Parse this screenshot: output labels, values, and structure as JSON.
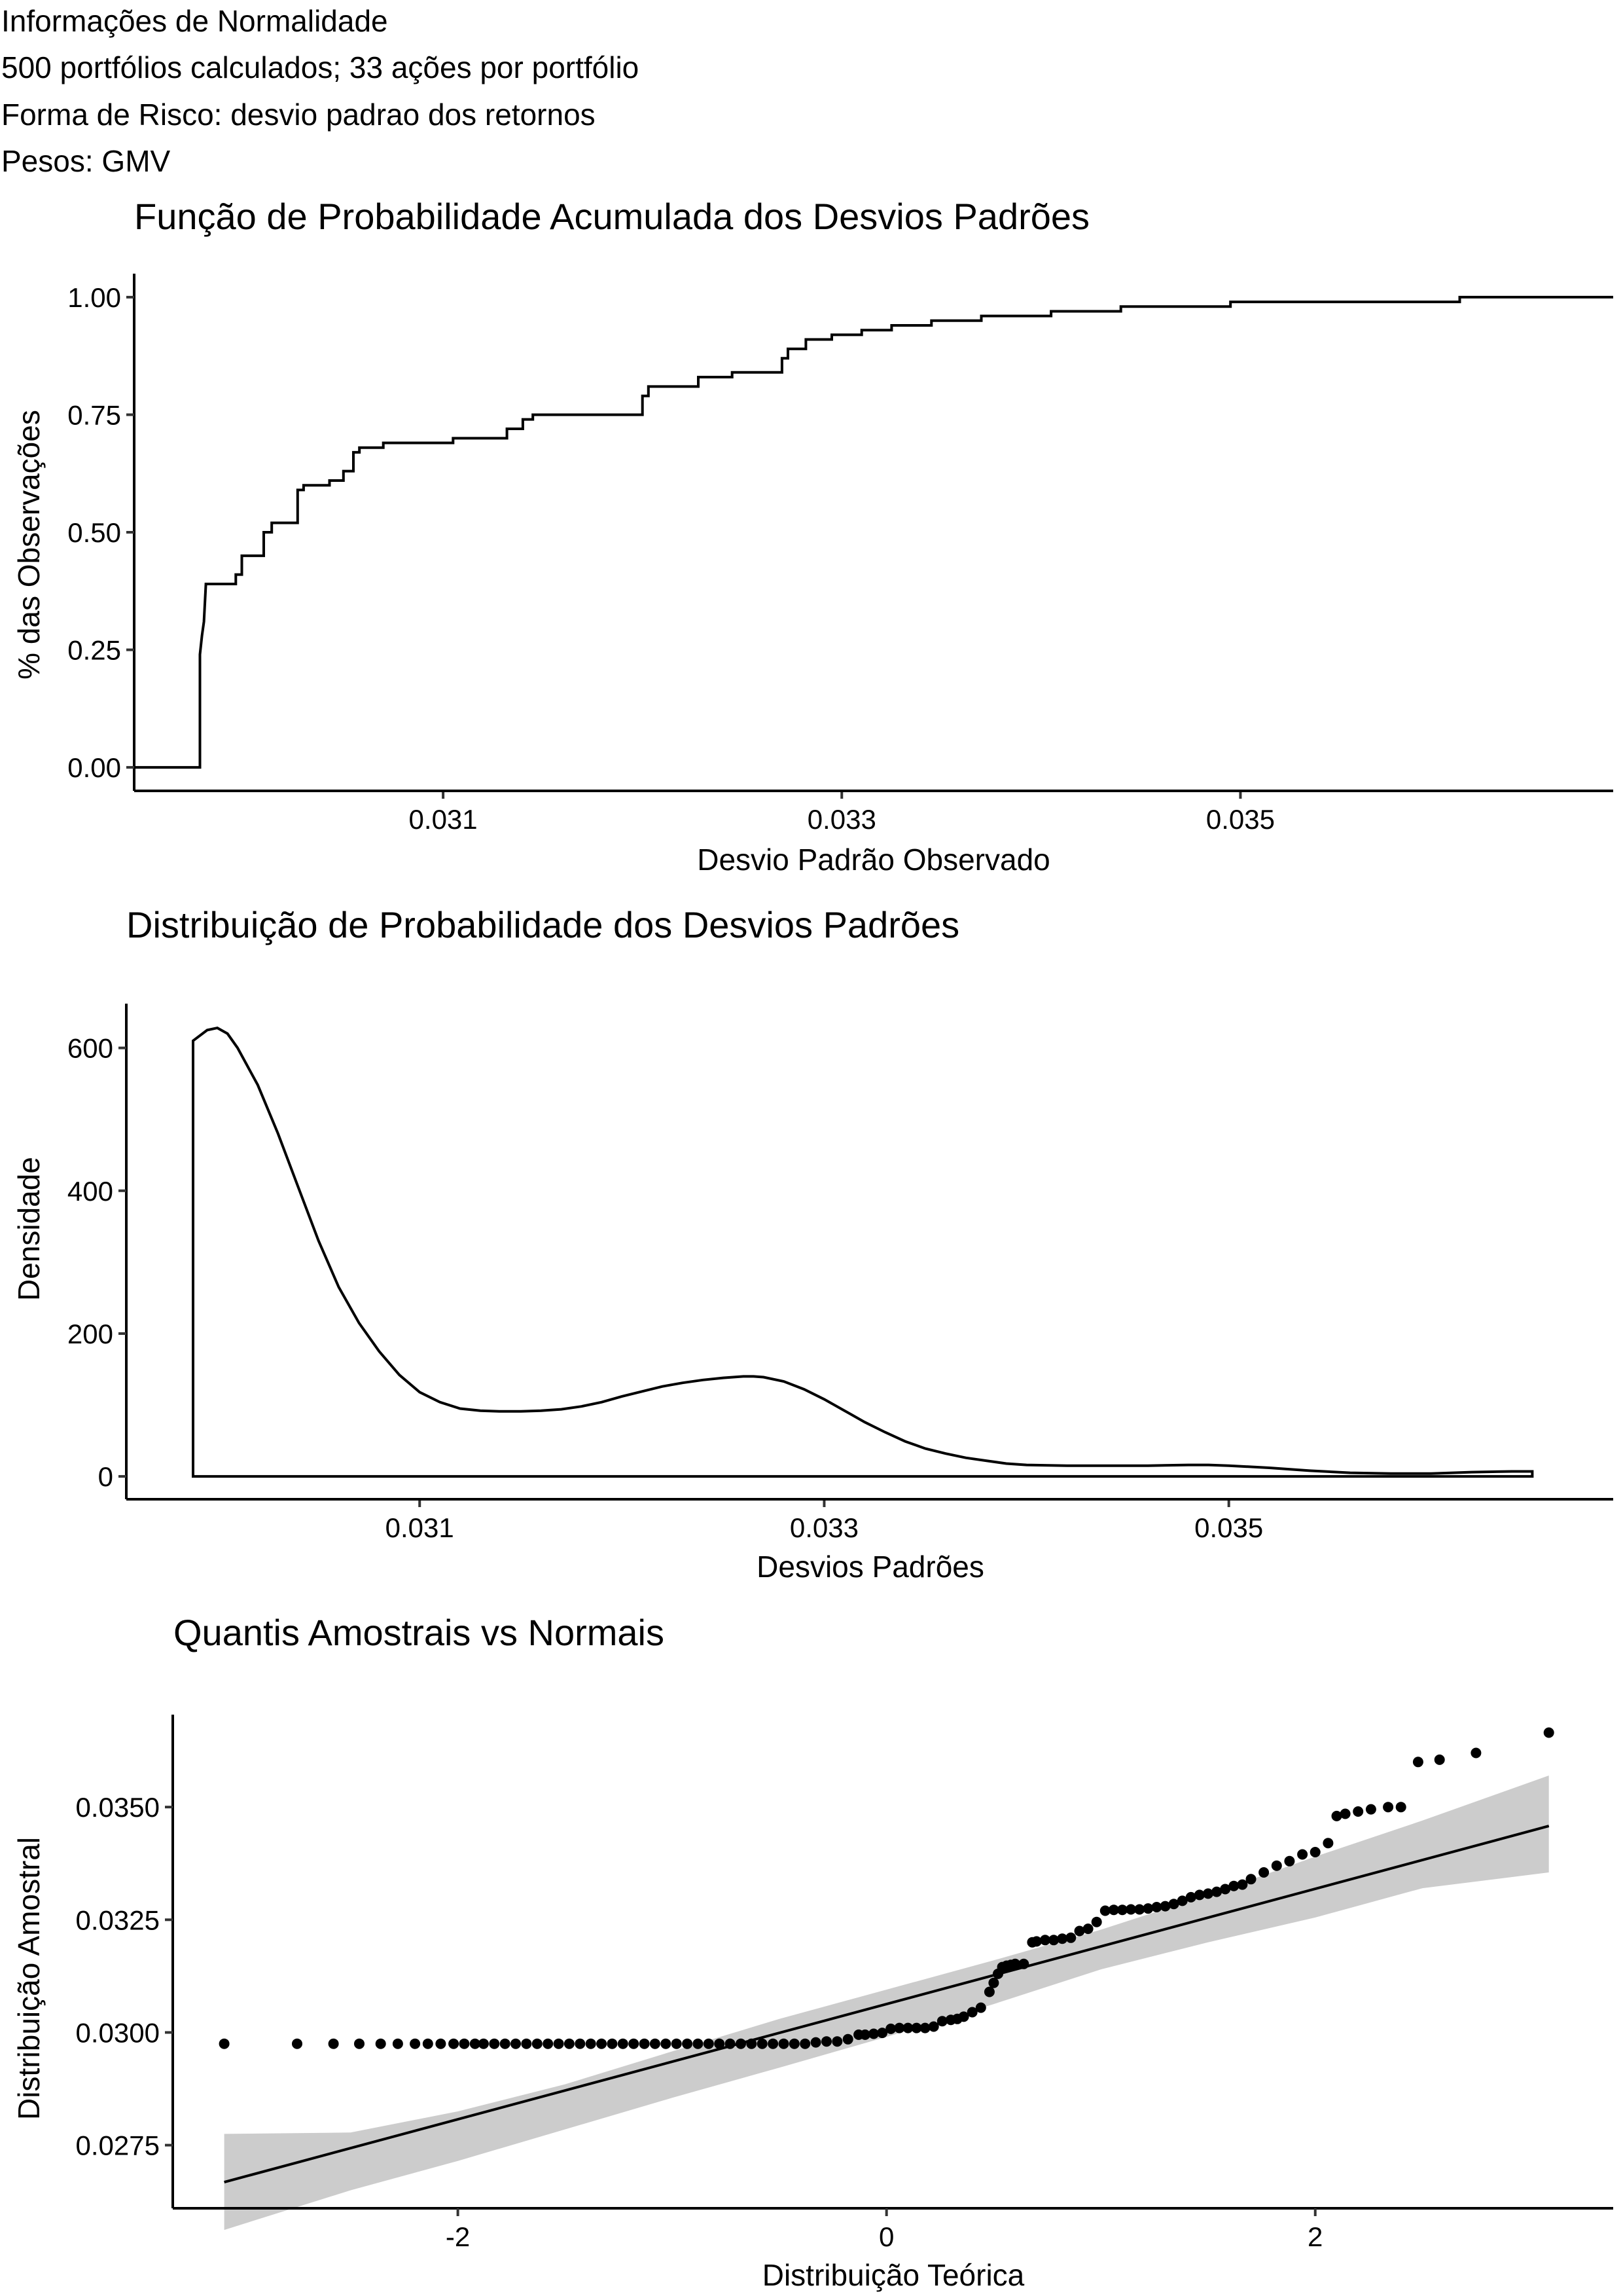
{
  "header": {
    "line1": "Informações de Normalidade",
    "line2": "500 portfólios calculados; 33 ações por portfólio",
    "line3": "Forma de Risco: desvio padrao dos retornos",
    "line4": "Pesos: GMV"
  },
  "chart_data": [
    {
      "type": "line",
      "subtype": "ecdf-step",
      "title": "Função de Probabilidade Acumulada dos Desvios Padrões",
      "xlabel": "Desvio Padrão Observado",
      "ylabel": "% das Observações",
      "xlim": [
        0.02945,
        0.03687
      ],
      "ylim": [
        -0.05,
        1.05
      ],
      "xticks": [
        0.031,
        0.033,
        0.035
      ],
      "xtick_labels": [
        "0.031",
        "0.033",
        "0.035"
      ],
      "yticks": [
        0,
        0.25,
        0.5,
        0.75,
        1
      ],
      "ytick_labels": [
        "0.00",
        "0.25",
        "0.50",
        "0.75",
        "1.00"
      ],
      "grid": false,
      "points": [
        [
          0.02945,
          0.0
        ],
        [
          0.02978,
          0.0
        ],
        [
          0.02978,
          0.24
        ],
        [
          0.02979,
          0.28
        ],
        [
          0.0298,
          0.31
        ],
        [
          0.02981,
          0.39
        ],
        [
          0.02996,
          0.39
        ],
        [
          0.02996,
          0.41
        ],
        [
          0.02999,
          0.41
        ],
        [
          0.02999,
          0.45
        ],
        [
          0.0301,
          0.45
        ],
        [
          0.0301,
          0.5
        ],
        [
          0.03014,
          0.5
        ],
        [
          0.03014,
          0.52
        ],
        [
          0.03027,
          0.52
        ],
        [
          0.03027,
          0.59
        ],
        [
          0.0303,
          0.59
        ],
        [
          0.0303,
          0.6
        ],
        [
          0.03043,
          0.6
        ],
        [
          0.03043,
          0.61
        ],
        [
          0.0305,
          0.61
        ],
        [
          0.0305,
          0.63
        ],
        [
          0.03055,
          0.63
        ],
        [
          0.03055,
          0.67
        ],
        [
          0.03058,
          0.67
        ],
        [
          0.03058,
          0.68
        ],
        [
          0.0307,
          0.68
        ],
        [
          0.0307,
          0.69
        ],
        [
          0.03105,
          0.69
        ],
        [
          0.03105,
          0.7
        ],
        [
          0.03132,
          0.7
        ],
        [
          0.03132,
          0.72
        ],
        [
          0.0314,
          0.72
        ],
        [
          0.0314,
          0.74
        ],
        [
          0.03145,
          0.74
        ],
        [
          0.03145,
          0.75
        ],
        [
          0.032,
          0.75
        ],
        [
          0.032,
          0.79
        ],
        [
          0.03203,
          0.79
        ],
        [
          0.03203,
          0.81
        ],
        [
          0.03228,
          0.81
        ],
        [
          0.03228,
          0.83
        ],
        [
          0.03245,
          0.83
        ],
        [
          0.03245,
          0.84
        ],
        [
          0.0327,
          0.84
        ],
        [
          0.0327,
          0.87
        ],
        [
          0.03273,
          0.87
        ],
        [
          0.03273,
          0.89
        ],
        [
          0.03282,
          0.89
        ],
        [
          0.03282,
          0.91
        ],
        [
          0.03295,
          0.91
        ],
        [
          0.03295,
          0.92
        ],
        [
          0.0331,
          0.92
        ],
        [
          0.0331,
          0.93
        ],
        [
          0.03325,
          0.93
        ],
        [
          0.03325,
          0.94
        ],
        [
          0.03345,
          0.94
        ],
        [
          0.03345,
          0.95
        ],
        [
          0.0337,
          0.95
        ],
        [
          0.0337,
          0.96
        ],
        [
          0.03405,
          0.96
        ],
        [
          0.03405,
          0.97
        ],
        [
          0.0344,
          0.97
        ],
        [
          0.0344,
          0.98
        ],
        [
          0.03495,
          0.98
        ],
        [
          0.03495,
          0.99
        ],
        [
          0.0361,
          0.99
        ],
        [
          0.0361,
          1.0
        ],
        [
          0.03687,
          1.0
        ]
      ]
    },
    {
      "type": "area",
      "subtype": "density",
      "title": "Distribuição de Probabilidade dos Desvios Padrões",
      "xlabel": "Desvios Padrões",
      "ylabel": "Densidade",
      "xlim": [
        0.02955,
        0.0369
      ],
      "ylim": [
        -32,
        662
      ],
      "xticks": [
        0.031,
        0.033,
        0.035
      ],
      "xtick_labels": [
        "0.031",
        "0.033",
        "0.035"
      ],
      "yticks": [
        0,
        200,
        400,
        600
      ],
      "ytick_labels": [
        "0",
        "200",
        "400",
        "600"
      ],
      "grid": false,
      "x": [
        0.02988,
        0.02995,
        0.03,
        0.03005,
        0.0301,
        0.0302,
        0.0303,
        0.0304,
        0.0305,
        0.0306,
        0.0307,
        0.0308,
        0.0309,
        0.031,
        0.0311,
        0.0312,
        0.0313,
        0.0314,
        0.0315,
        0.0316,
        0.0317,
        0.0318,
        0.0319,
        0.032,
        0.0321,
        0.0322,
        0.0323,
        0.0324,
        0.0325,
        0.0326,
        0.03265,
        0.0327,
        0.0328,
        0.0329,
        0.033,
        0.0331,
        0.0332,
        0.0333,
        0.0334,
        0.0335,
        0.0336,
        0.0337,
        0.0338,
        0.0339,
        0.034,
        0.0342,
        0.0344,
        0.0346,
        0.0348,
        0.0349,
        0.035,
        0.0352,
        0.0354,
        0.0356,
        0.0358,
        0.036,
        0.0362,
        0.0364,
        0.0365
      ],
      "y": [
        610,
        625,
        628,
        620,
        600,
        548,
        480,
        405,
        330,
        265,
        215,
        175,
        142,
        118,
        104,
        95,
        92,
        91,
        91,
        92,
        94,
        98,
        104,
        112,
        119,
        126,
        131,
        135,
        138,
        140,
        140,
        139,
        133,
        122,
        108,
        92,
        76,
        62,
        49,
        39,
        32,
        26,
        22,
        18,
        16,
        15,
        15,
        15,
        16,
        16,
        15,
        12,
        8,
        5,
        4,
        4,
        6,
        7,
        7
      ]
    },
    {
      "type": "scatter",
      "subtype": "qq-plot",
      "title": "Quantis Amostrais vs Normais",
      "xlabel": "Distribuição Teórica",
      "ylabel": "Distribuição Amostral",
      "xlim": [
        -3.33,
        3.39
      ],
      "ylim": [
        0.0261,
        0.03705
      ],
      "xticks": [
        -2,
        0,
        2
      ],
      "xtick_labels": [
        "-2",
        "0",
        "2"
      ],
      "yticks": [
        0.0275,
        0.03,
        0.0325,
        0.035
      ],
      "ytick_labels": [
        "0.0275",
        "0.0300",
        "0.0325",
        "0.0350"
      ],
      "grid": false,
      "points_x": [
        -3.09,
        -2.75,
        -2.58,
        -2.46,
        -2.36,
        -2.28,
        -2.2,
        -2.14,
        -2.08,
        -2.02,
        -1.97,
        -1.92,
        -1.88,
        -1.83,
        -1.78,
        -1.73,
        -1.68,
        -1.63,
        -1.58,
        -1.53,
        -1.48,
        -1.43,
        -1.38,
        -1.33,
        -1.28,
        -1.23,
        -1.18,
        -1.13,
        -1.08,
        -1.03,
        -0.98,
        -0.93,
        -0.88,
        -0.83,
        -0.78,
        -0.73,
        -0.68,
        -0.63,
        -0.58,
        -0.53,
        -0.48,
        -0.43,
        -0.38,
        -0.33,
        -0.28,
        -0.23,
        -0.18,
        -0.13,
        -0.1,
        -0.06,
        -0.02,
        0.02,
        0.06,
        0.1,
        0.14,
        0.18,
        0.22,
        0.26,
        0.3,
        0.33,
        0.36,
        0.4,
        0.44,
        0.48,
        0.5,
        0.52,
        0.54,
        0.56,
        0.58,
        0.6,
        0.64,
        0.68,
        0.7,
        0.74,
        0.78,
        0.82,
        0.86,
        0.9,
        0.94,
        0.98,
        1.02,
        1.06,
        1.1,
        1.14,
        1.18,
        1.22,
        1.26,
        1.3,
        1.34,
        1.38,
        1.42,
        1.46,
        1.5,
        1.54,
        1.58,
        1.62,
        1.66,
        1.7,
        1.76,
        1.82,
        1.88,
        1.94,
        2.0,
        2.06,
        2.1,
        2.14,
        2.2,
        2.26,
        2.34,
        2.4,
        2.48,
        2.58,
        2.75,
        3.09
      ],
      "points_y": [
        0.02975,
        0.02975,
        0.02975,
        0.02975,
        0.02975,
        0.02975,
        0.02975,
        0.02975,
        0.02975,
        0.02975,
        0.02975,
        0.02975,
        0.02975,
        0.02975,
        0.02975,
        0.02975,
        0.02975,
        0.02975,
        0.02975,
        0.02975,
        0.02975,
        0.02975,
        0.02975,
        0.02975,
        0.02975,
        0.02975,
        0.02975,
        0.02975,
        0.02975,
        0.02975,
        0.02975,
        0.02975,
        0.02975,
        0.02975,
        0.02975,
        0.02975,
        0.02975,
        0.02975,
        0.02975,
        0.02975,
        0.02975,
        0.02975,
        0.02975,
        0.02978,
        0.0298,
        0.0298,
        0.02985,
        0.02995,
        0.02995,
        0.02997,
        0.02999,
        0.03008,
        0.0301,
        0.0301,
        0.0301,
        0.0301,
        0.03013,
        0.03025,
        0.03028,
        0.0303,
        0.03035,
        0.03045,
        0.03055,
        0.0309,
        0.0311,
        0.0313,
        0.03145,
        0.03148,
        0.0315,
        0.03152,
        0.03152,
        0.032,
        0.03202,
        0.03205,
        0.03205,
        0.03208,
        0.0321,
        0.03225,
        0.0323,
        0.03245,
        0.0327,
        0.03272,
        0.03272,
        0.03273,
        0.03273,
        0.03275,
        0.03278,
        0.0328,
        0.03285,
        0.03292,
        0.033,
        0.03305,
        0.03308,
        0.03312,
        0.03318,
        0.03325,
        0.03328,
        0.0334,
        0.03355,
        0.0337,
        0.0338,
        0.03395,
        0.034,
        0.0342,
        0.0348,
        0.03485,
        0.0349,
        0.03495,
        0.035,
        0.035,
        0.036,
        0.03605,
        0.0362,
        0.03665
      ],
      "fit_line": {
        "x": [
          -3.09,
          3.09
        ],
        "y": [
          0.02668,
          0.03458
        ]
      },
      "confidence_band": {
        "x": [
          -3.09,
          -2.5,
          -2.0,
          -1.5,
          -1.0,
          -0.5,
          0.0,
          0.5,
          1.0,
          1.5,
          2.0,
          2.5,
          3.09
        ],
        "upper": [
          0.02775,
          0.02778,
          0.02825,
          0.02885,
          0.02958,
          0.0303,
          0.03095,
          0.0316,
          0.03228,
          0.03305,
          0.0339,
          0.0347,
          0.0357
        ],
        "lower": [
          0.02562,
          0.0265,
          0.02715,
          0.02785,
          0.02855,
          0.02922,
          0.0299,
          0.03063,
          0.0314,
          0.032,
          0.03255,
          0.0332,
          0.03355
        ]
      }
    }
  ]
}
